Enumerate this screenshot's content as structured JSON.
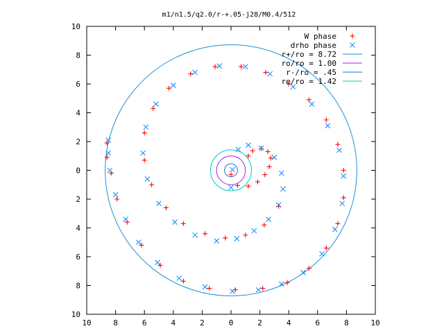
{
  "chart_data": {
    "type": "scatter",
    "title": "m1/n1.5/q2.0/r-+.05-j28/M0.4/512",
    "xlim": [
      -10,
      10
    ],
    "ylim": [
      -10,
      10
    ],
    "x_ticks": [
      -10,
      -8,
      -6,
      -4,
      -2,
      0,
      2,
      4,
      6,
      8,
      10
    ],
    "y_ticks": [
      -10,
      -8,
      -6,
      -4,
      -2,
      0,
      2,
      4,
      6,
      8,
      10
    ],
    "x_tick_labels": [
      "10",
      "8",
      "6",
      "4",
      "2",
      "0",
      "2",
      "4",
      "6",
      "8",
      "10"
    ],
    "y_tick_labels": [
      "10",
      "8",
      "6",
      "4",
      "2",
      "0",
      "2",
      "4",
      "6",
      "8",
      "10"
    ],
    "grid": false,
    "legend_position": "top-right",
    "series": [
      {
        "name": "W phase",
        "marker": "plus",
        "color": "#ff0000",
        "points": [
          [
            0.0,
            -0.3
          ],
          [
            0.45,
            -1.05
          ],
          [
            1.2,
            -1.1
          ],
          [
            1.85,
            -0.8
          ],
          [
            2.35,
            -0.3
          ],
          [
            2.65,
            0.25
          ],
          [
            2.75,
            0.85
          ],
          [
            2.55,
            1.3
          ],
          [
            2.1,
            1.5
          ],
          [
            1.5,
            1.35
          ],
          [
            1.2,
            1.0
          ],
          [
            3.3,
            -2.5
          ],
          [
            2.3,
            -3.8
          ],
          [
            1.0,
            -4.5
          ],
          [
            -0.4,
            -4.7
          ],
          [
            -1.8,
            -4.4
          ],
          [
            -3.3,
            -3.7
          ],
          [
            -4.5,
            -2.6
          ],
          [
            -5.5,
            -1.0
          ],
          [
            -6.0,
            0.7
          ],
          [
            -6.0,
            2.6
          ],
          [
            -5.4,
            4.3
          ],
          [
            -4.3,
            5.7
          ],
          [
            -2.8,
            6.7
          ],
          [
            -1.1,
            7.2
          ],
          [
            0.7,
            7.2
          ],
          [
            2.4,
            6.8
          ],
          [
            4.0,
            6.0
          ],
          [
            5.4,
            4.9
          ],
          [
            6.6,
            3.5
          ],
          [
            7.4,
            1.8
          ],
          [
            7.8,
            0.0
          ],
          [
            7.8,
            -1.9
          ],
          [
            7.4,
            -3.7
          ],
          [
            6.6,
            -5.4
          ],
          [
            5.4,
            -6.8
          ],
          [
            3.9,
            -7.8
          ],
          [
            2.2,
            -8.2
          ],
          [
            0.3,
            -8.3
          ],
          [
            -1.5,
            -8.2
          ],
          [
            -3.3,
            -7.7
          ],
          [
            -4.9,
            -6.6
          ],
          [
            -6.2,
            -5.2
          ],
          [
            -7.2,
            -3.6
          ],
          [
            -7.9,
            -2.0
          ],
          [
            -8.3,
            -0.2
          ],
          [
            -8.6,
            0.9
          ],
          [
            -8.6,
            1.9
          ]
        ]
      },
      {
        "name": "drho phase",
        "marker": "cross",
        "color": "#1e90ff",
        "points": [
          [
            0.0,
            -1.2
          ],
          [
            0.1,
            0.05
          ],
          [
            0.5,
            1.45
          ],
          [
            1.2,
            1.75
          ],
          [
            2.1,
            1.55
          ],
          [
            3.0,
            0.9
          ],
          [
            3.5,
            -0.2
          ],
          [
            3.6,
            -1.3
          ],
          [
            3.3,
            -2.4
          ],
          [
            2.6,
            -3.4
          ],
          [
            1.6,
            -4.2
          ],
          [
            0.4,
            -4.75
          ],
          [
            -1.0,
            -4.9
          ],
          [
            -2.5,
            -4.5
          ],
          [
            -3.9,
            -3.6
          ],
          [
            -5.0,
            -2.3
          ],
          [
            -5.8,
            -0.6
          ],
          [
            -6.1,
            1.2
          ],
          [
            -5.9,
            3.0
          ],
          [
            -5.2,
            4.6
          ],
          [
            -4.0,
            5.9
          ],
          [
            -2.5,
            6.8
          ],
          [
            -0.8,
            7.25
          ],
          [
            1.0,
            7.2
          ],
          [
            2.7,
            6.7
          ],
          [
            4.3,
            5.8
          ],
          [
            5.6,
            4.6
          ],
          [
            6.7,
            3.1
          ],
          [
            7.5,
            1.4
          ],
          [
            7.8,
            -0.4
          ],
          [
            7.7,
            -2.3
          ],
          [
            7.2,
            -4.1
          ],
          [
            6.3,
            -5.8
          ],
          [
            5.0,
            -7.1
          ],
          [
            3.5,
            -7.9
          ],
          [
            1.9,
            -8.3
          ],
          [
            0.1,
            -8.4
          ],
          [
            -1.8,
            -8.1
          ],
          [
            -3.6,
            -7.5
          ],
          [
            -5.1,
            -6.4
          ],
          [
            -6.4,
            -5.0
          ],
          [
            -7.3,
            -3.4
          ],
          [
            -8.0,
            -1.7
          ],
          [
            -8.4,
            0.0
          ],
          [
            -8.5,
            1.2
          ],
          [
            -8.5,
            2.1
          ]
        ]
      }
    ],
    "circles": [
      {
        "name": "r+/ro = 8.72",
        "radius": 8.72,
        "color": "#1a8fd6"
      },
      {
        "name": "ro/ro = 1.00",
        "radius": 1.0,
        "color": "#a020f0"
      },
      {
        "name": "r-/ro = .45",
        "radius": 0.45,
        "color": "#1a6fd6"
      },
      {
        "name": "re/ro = 1.42",
        "radius": 1.42,
        "color": "#00c8c8"
      }
    ]
  }
}
